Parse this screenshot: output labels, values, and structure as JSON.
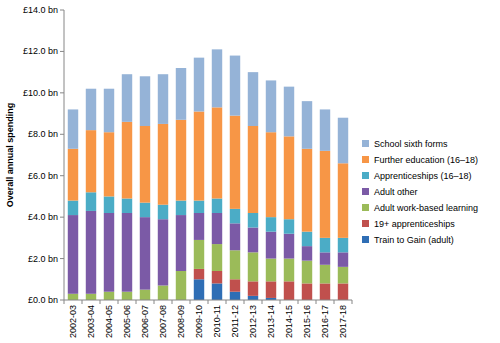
{
  "chart_data": {
    "type": "bar",
    "stacked": true,
    "grid": false,
    "legend": "right",
    "y_label": "Overall annual spending",
    "categories": [
      "2002-03",
      "2003-04",
      "2004-05",
      "2005-06",
      "2006-07",
      "2007-08",
      "2008-09",
      "2009-10",
      "2010-11",
      "2011-12",
      "2012-13",
      "2013-14",
      "2014-15",
      "2015-16",
      "2016-17",
      "2017-18"
    ],
    "ylim": [
      0,
      14
    ],
    "yticks": [
      {
        "value": 0,
        "label": "£0.0 bn"
      },
      {
        "value": 2,
        "label": "£2.0 bn"
      },
      {
        "value": 4,
        "label": "£4.0 bn"
      },
      {
        "value": 6,
        "label": "£6.0 bn"
      },
      {
        "value": 8,
        "label": "£8.0 bn"
      },
      {
        "value": 10,
        "label": "£10.0 bn"
      },
      {
        "value": 12,
        "label": "£12.0 bn"
      },
      {
        "value": 14,
        "label": "£14.0 bn"
      }
    ],
    "series": [
      {
        "name": "Train to Gain (adult)",
        "color": "#2f6eb5",
        "values": [
          0,
          0,
          0,
          0,
          0,
          0,
          0,
          1.0,
          0.8,
          0.4,
          0.2,
          0.1,
          0,
          0,
          0,
          0
        ]
      },
      {
        "name": "19+ apprenticeships",
        "color": "#c0504d",
        "values": [
          0,
          0,
          0,
          0,
          0,
          0,
          0,
          0.5,
          0.6,
          0.6,
          0.7,
          0.8,
          0.9,
          0.8,
          0.8,
          0.8
        ]
      },
      {
        "name": "Adult work-based learning",
        "color": "#9bbb59",
        "values": [
          0.3,
          0.3,
          0.4,
          0.4,
          0.5,
          0.7,
          1.4,
          1.4,
          1.3,
          1.4,
          1.4,
          1.1,
          1.1,
          1.1,
          0.9,
          0.8
        ]
      },
      {
        "name": "Adult other",
        "color": "#7b5aa6",
        "values": [
          3.8,
          4.0,
          3.8,
          3.8,
          3.5,
          3.2,
          2.7,
          1.3,
          1.5,
          1.3,
          1.2,
          1.3,
          1.2,
          0.7,
          0.6,
          0.7
        ]
      },
      {
        "name": "Apprenticeships (16–18)",
        "color": "#4bacc6",
        "values": [
          0.7,
          0.9,
          0.8,
          0.7,
          0.7,
          0.7,
          0.7,
          0.6,
          0.7,
          0.7,
          0.7,
          0.7,
          0.7,
          0.7,
          0.7,
          0.7
        ]
      },
      {
        "name": "Further education (16–18)",
        "color": "#f79646",
        "values": [
          2.5,
          3.0,
          3.1,
          3.7,
          3.7,
          3.9,
          3.9,
          4.3,
          4.4,
          4.5,
          4.2,
          4.1,
          4.0,
          4.0,
          4.2,
          3.6
        ]
      },
      {
        "name": "School sixth forms",
        "color": "#95b3d7",
        "values": [
          1.9,
          2.0,
          2.1,
          2.3,
          2.4,
          2.4,
          2.5,
          2.6,
          2.8,
          2.9,
          2.6,
          2.5,
          2.4,
          2.3,
          2.0,
          2.2
        ]
      }
    ]
  }
}
